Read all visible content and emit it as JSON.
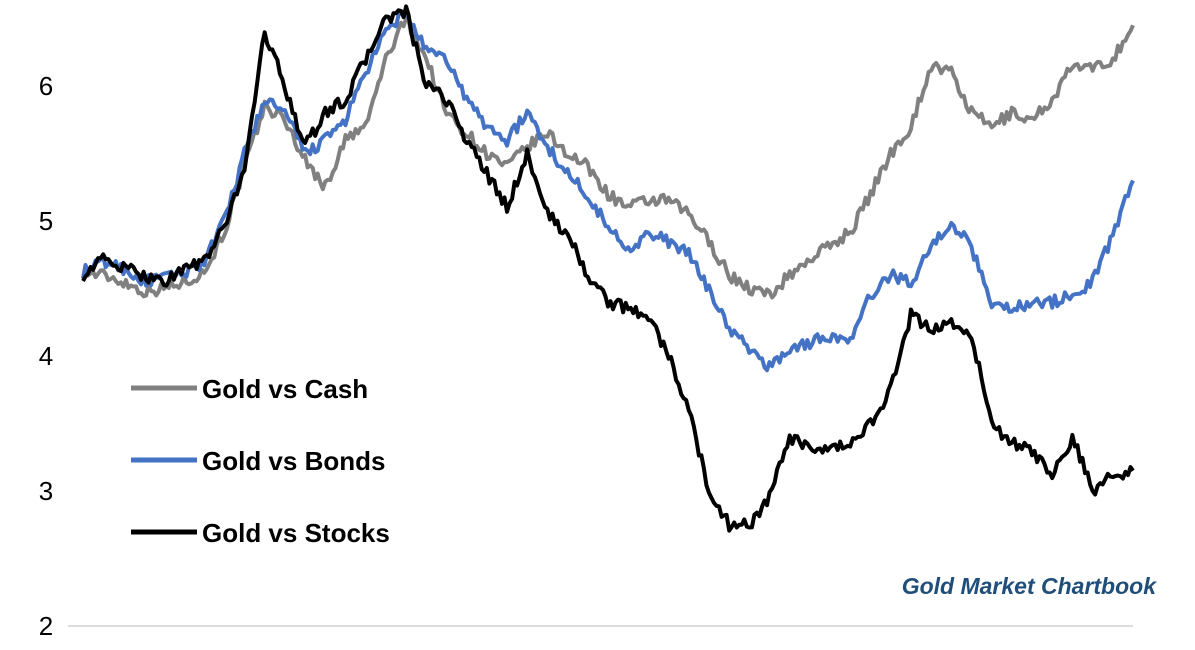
{
  "chart_data": {
    "type": "line",
    "title": "",
    "xlabel": "",
    "ylabel": "",
    "ylim": [
      2,
      6.6
    ],
    "yticks": [
      2,
      3,
      4,
      5,
      6
    ],
    "ytick_labels": [
      "2",
      "3",
      "4",
      "5",
      "6"
    ],
    "grid": false,
    "legend_position": "left",
    "annotation": "Gold Market Chartbook",
    "series": [
      {
        "name": "Gold vs Cash",
        "color": "#808080",
        "values": [
          4.62,
          4.6,
          4.55,
          4.48,
          4.5,
          4.55,
          4.62,
          4.92,
          5.4,
          5.85,
          5.75,
          5.45,
          5.25,
          5.6,
          5.7,
          6.2,
          6.5,
          6.2,
          5.8,
          5.65,
          5.5,
          5.4,
          5.55,
          5.65,
          5.5,
          5.4,
          5.2,
          5.1,
          5.15,
          5.15,
          5.05,
          4.85,
          4.6,
          4.5,
          4.45,
          4.6,
          4.72,
          4.82,
          4.92,
          5.2,
          5.5,
          5.7,
          6.15,
          6.1,
          5.8,
          5.7,
          5.8,
          5.75,
          5.9,
          6.15,
          6.12,
          6.2,
          6.45
        ]
      },
      {
        "name": "Gold vs Bonds",
        "color": "#4472c4",
        "values": [
          4.62,
          4.7,
          4.65,
          4.55,
          4.58,
          4.62,
          4.7,
          5.0,
          5.5,
          5.9,
          5.8,
          5.5,
          5.6,
          5.75,
          6.1,
          6.4,
          6.55,
          6.25,
          6.2,
          5.9,
          5.7,
          5.6,
          5.8,
          5.55,
          5.35,
          5.2,
          4.95,
          4.8,
          4.9,
          4.85,
          4.75,
          4.5,
          4.2,
          4.05,
          3.92,
          4.05,
          4.1,
          4.15,
          4.1,
          4.45,
          4.6,
          4.55,
          4.8,
          5.0,
          4.8,
          4.4,
          4.35,
          4.4,
          4.4,
          4.45,
          4.55,
          4.9,
          5.3
        ]
      },
      {
        "name": "Gold vs Stocks",
        "color": "#000000",
        "values": [
          4.6,
          4.72,
          4.65,
          4.6,
          4.55,
          4.65,
          4.7,
          4.95,
          5.4,
          6.4,
          6.0,
          5.55,
          5.8,
          5.9,
          6.2,
          6.5,
          6.55,
          6.0,
          5.9,
          5.6,
          5.35,
          5.1,
          5.5,
          5.05,
          4.9,
          4.6,
          4.4,
          4.35,
          4.3,
          4.0,
          3.6,
          3.0,
          2.75,
          2.75,
          2.95,
          3.4,
          3.3,
          3.3,
          3.35,
          3.5,
          3.75,
          4.3,
          4.2,
          4.25,
          4.15,
          3.5,
          3.35,
          3.3,
          3.1,
          3.4,
          3.0,
          3.12,
          3.15
        ]
      }
    ]
  }
}
